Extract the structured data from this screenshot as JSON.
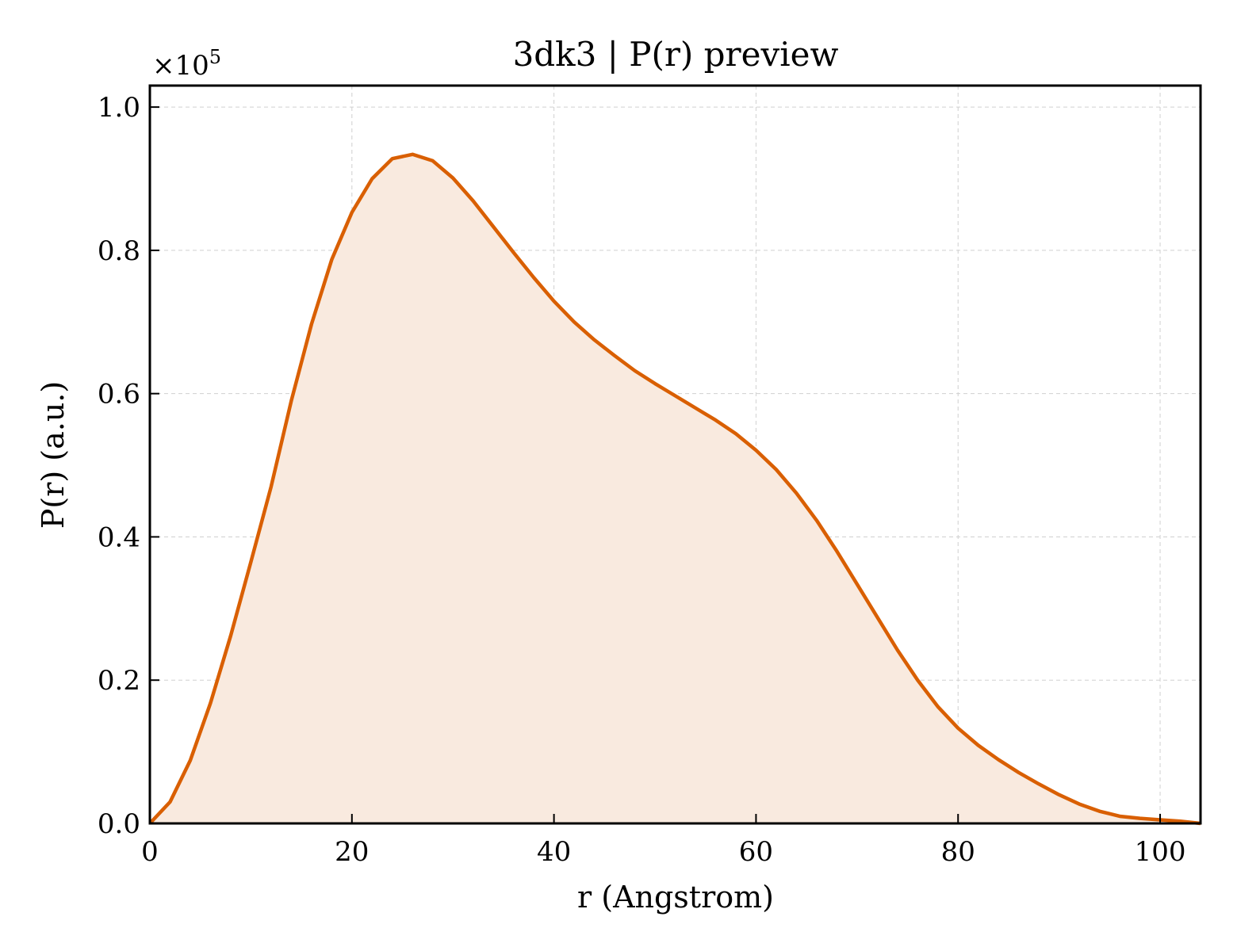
{
  "chart_data": {
    "type": "area",
    "title": "3dk3 | P(r) preview",
    "xlabel": "r (Angstrom)",
    "ylabel": "P(r) (a.u.)",
    "y_offset_label_base": "×10",
    "y_offset_label_exp": "5",
    "xlim": [
      0,
      104
    ],
    "ylim": [
      0,
      1.03
    ],
    "grid": true,
    "x_ticks": [
      0,
      20,
      40,
      60,
      80,
      100
    ],
    "y_ticks": [
      0.0,
      0.2,
      0.4,
      0.6,
      0.8,
      1.0
    ],
    "x_tick_labels": [
      "0",
      "20",
      "40",
      "60",
      "80",
      "100"
    ],
    "y_tick_labels": [
      "0.0",
      "0.2",
      "0.4",
      "0.6",
      "0.8",
      "1.0"
    ],
    "colors": {
      "line": "#d95f02",
      "fill": "#f9eadf"
    },
    "series": [
      {
        "x": [
          0,
          2,
          4,
          6,
          8,
          10,
          12,
          14,
          16,
          18,
          20,
          22,
          24,
          26,
          28,
          30,
          32,
          34,
          36,
          38,
          40,
          42,
          44,
          46,
          48,
          50,
          52,
          54,
          56,
          58,
          60,
          62,
          64,
          66,
          68,
          70,
          72,
          74,
          76,
          78,
          80,
          82,
          84,
          86,
          88,
          90,
          92,
          94,
          96,
          98,
          100,
          102,
          104
        ],
        "values": [
          0.0,
          0.03,
          0.088,
          0.168,
          0.262,
          0.365,
          0.47,
          0.59,
          0.697,
          0.787,
          0.853,
          0.9,
          0.928,
          0.934,
          0.925,
          0.901,
          0.869,
          0.833,
          0.797,
          0.762,
          0.729,
          0.7,
          0.675,
          0.653,
          0.632,
          0.614,
          0.597,
          0.58,
          0.563,
          0.544,
          0.521,
          0.494,
          0.461,
          0.423,
          0.38,
          0.334,
          0.288,
          0.242,
          0.2,
          0.163,
          0.133,
          0.109,
          0.089,
          0.071,
          0.055,
          0.04,
          0.027,
          0.017,
          0.01,
          0.007,
          0.005,
          0.003,
          0.0
        ]
      }
    ]
  }
}
